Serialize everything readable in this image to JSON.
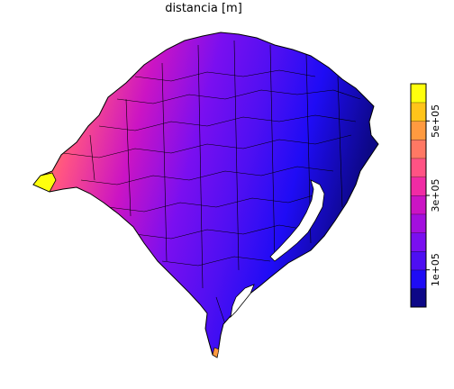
{
  "title": "distancia [m]",
  "legend": {
    "tick_labels": [
      "1e+05",
      "3e+05",
      "5e+05"
    ],
    "tick_values": [
      100000,
      300000,
      500000
    ],
    "range": [
      0,
      600000
    ],
    "colors": [
      "#0D0887",
      "#1F0CF5",
      "#4E0FF2",
      "#7A0FF0",
      "#A30FDE",
      "#CB14C4",
      "#F02BA4",
      "#FF5384",
      "#FF7864",
      "#FF9A40",
      "#FFC41A",
      "#FFFF0D"
    ]
  },
  "map": {
    "region": "Rio Grande do Sul municipalities",
    "color_scale": "blue (near) to yellow (far)"
  }
}
